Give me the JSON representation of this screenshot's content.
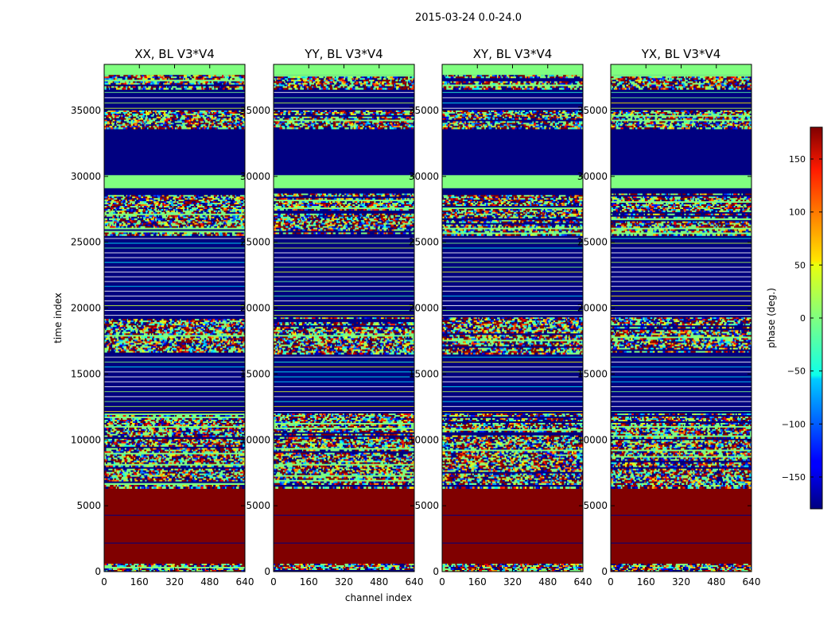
{
  "chart_data": {
    "type": "heatmap",
    "suptitle": "2015-03-24 0.0-24.0",
    "panels": [
      {
        "title": "XX, BL V3*V4",
        "pol": "XX"
      },
      {
        "title": "YY, BL V3*V4",
        "pol": "YY"
      },
      {
        "title": "XY, BL V3*V4",
        "pol": "XY"
      },
      {
        "title": "YX, BL V3*V4",
        "pol": "YX"
      }
    ],
    "xlabel": "channel index",
    "ylabel": "time index",
    "xlim": [
      0,
      640
    ],
    "ylim": [
      0,
      38500
    ],
    "xticks": [
      0,
      160,
      320,
      480,
      640
    ],
    "yticks": [
      0,
      5000,
      10000,
      15000,
      20000,
      25000,
      30000,
      35000
    ],
    "colorbar": {
      "label": "phase (deg.)",
      "range": [
        -180,
        180
      ],
      "ticks": [
        150,
        100,
        50,
        0,
        -50,
        -100,
        -150
      ],
      "tick_labels": [
        "150",
        "100",
        "50",
        "0",
        "−50",
        "−100",
        "−150"
      ],
      "colormap": "jet"
    },
    "bands": [
      {
        "t0": 0,
        "t1": 600,
        "kind": "noise"
      },
      {
        "t0": 600,
        "t1": 6300,
        "kind": "solid",
        "phase": 180
      },
      {
        "t0": 6300,
        "t1": 6600,
        "kind": "noise"
      },
      {
        "t0": 6600,
        "t1": 9500,
        "kind": "noise"
      },
      {
        "t0": 9500,
        "t1": 10100,
        "kind": "noise"
      },
      {
        "t0": 10100,
        "t1": 12000,
        "kind": "noise"
      },
      {
        "t0": 12000,
        "t1": 16500,
        "kind": "striped",
        "phase": -180
      },
      {
        "t0": 16500,
        "t1": 19300,
        "kind": "noise"
      },
      {
        "t0": 19300,
        "t1": 21500,
        "kind": "striped",
        "phase": -180
      },
      {
        "t0": 21500,
        "t1": 25500,
        "kind": "striped",
        "phase": -180
      },
      {
        "t0": 25500,
        "t1": 26700,
        "kind": "noise"
      },
      {
        "t0": 26700,
        "t1": 28700,
        "kind": "noise"
      },
      {
        "t0": 28700,
        "t1": 29100,
        "kind": "solid",
        "phase": -180
      },
      {
        "t0": 29100,
        "t1": 30100,
        "kind": "solid",
        "phase": 0
      },
      {
        "t0": 30100,
        "t1": 33600,
        "kind": "solid",
        "phase": -180
      },
      {
        "t0": 33600,
        "t1": 35000,
        "kind": "noise"
      },
      {
        "t0": 35000,
        "t1": 36600,
        "kind": "striped",
        "phase": -180
      },
      {
        "t0": 36600,
        "t1": 37700,
        "kind": "noise"
      },
      {
        "t0": 37700,
        "t1": 38500,
        "kind": "solid",
        "phase": 0
      }
    ],
    "colors": {
      "min": "#000080",
      "max": "#800000",
      "zero": "#80ff80",
      "frame": "#000000"
    }
  }
}
